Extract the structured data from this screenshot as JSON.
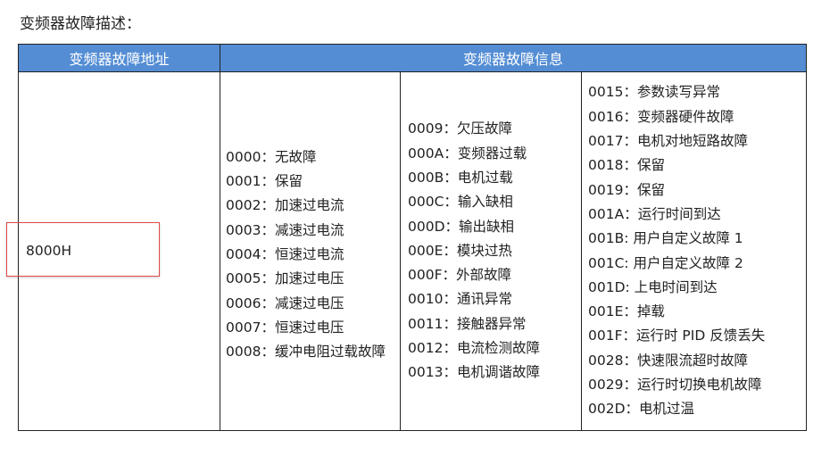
{
  "title": "变频器故障描述：",
  "headers": {
    "address": "变频器故障地址",
    "info": "变频器故障信息"
  },
  "address": "8000H",
  "col1": [
    "0000：无故障",
    "0001：保留",
    "0002：加速过电流",
    "0003：减速过电流",
    "0004：恒速过电流",
    "0005：加速过电压",
    "0006：减速过电压",
    "0007：恒速过电压",
    "0008：缓冲电阻过载故障"
  ],
  "col2": [
    "0009：欠压故障",
    "000A：变频器过载",
    "000B：电机过载",
    "000C：输入缺相",
    "000D：输出缺相",
    "000E：模块过热",
    "000F：外部故障",
    "0010：通讯异常",
    "0011：接触器异常",
    "0012：电流检测故障",
    "0013：电机调谐故障"
  ],
  "col3": [
    "0015：参数读写异常",
    "0016：变频器硬件故障",
    "0017：电机对地短路故障",
    "0018：保留",
    "0019：保留",
    "001A：运行时间到达",
    "001B: 用户自定义故障 1",
    "001C: 用户自定义故障 2",
    "001D: 上电时间到达",
    "001E：掉载",
    "001F：运行时 PID 反馈丢失",
    "0028：快速限流超时故障",
    "0029：运行时切换电机故障",
    "002D：电机过温"
  ],
  "colors": {
    "header_bg": "#548dd4",
    "highlight": "#e04848"
  }
}
